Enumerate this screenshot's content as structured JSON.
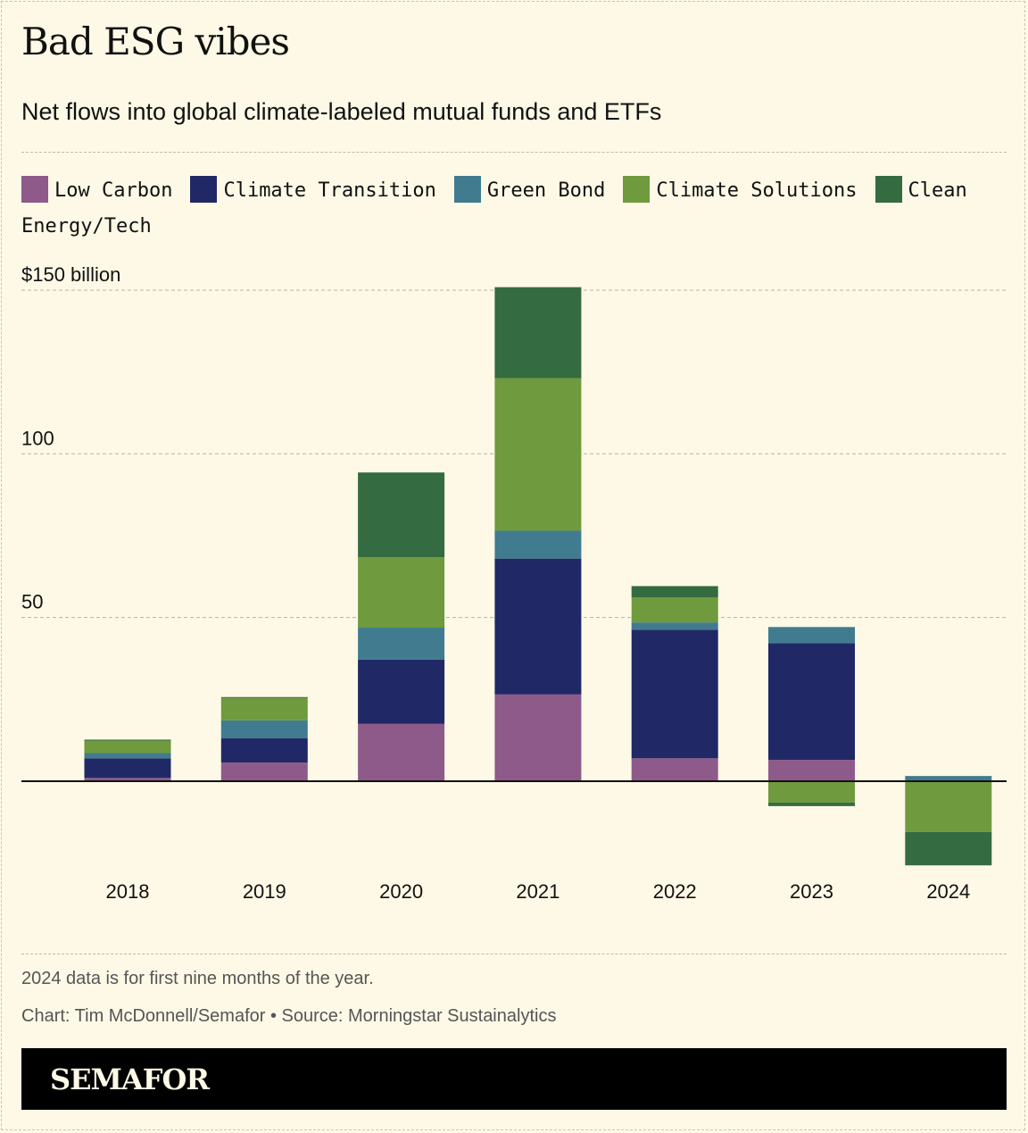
{
  "chart_data": {
    "type": "bar",
    "stacked": true,
    "title": "Bad ESG vibes",
    "subtitle": "Net flows into global climate-labeled mutual funds and ETFs",
    "ylabel": "",
    "y_unit_label": "$150 billion",
    "yticks": [
      {
        "value": 150,
        "label": "$150 billion"
      },
      {
        "value": 100,
        "label": "100"
      },
      {
        "value": 50,
        "label": "50"
      }
    ],
    "ylim": [
      -28,
      155
    ],
    "grid": true,
    "legend_placement": "top",
    "categories": [
      "2018",
      "2019",
      "2020",
      "2021",
      "2022",
      "2023",
      "2024"
    ],
    "series": [
      {
        "name": "Low Carbon",
        "color": "#8e5a8a",
        "values": [
          1,
          5.7,
          17.5,
          26.5,
          7,
          6.5,
          0
        ]
      },
      {
        "name": "Climate Transition",
        "color": "#202966",
        "values": [
          6,
          7.4,
          19.6,
          41.5,
          39.3,
          35.7,
          0
        ]
      },
      {
        "name": "Green Bond",
        "color": "#417b8f",
        "values": [
          1.6,
          5.5,
          9.8,
          8.5,
          2.2,
          4.9,
          1.6
        ]
      },
      {
        "name": "Climate Solutions",
        "color": "#6f9a3d",
        "values": [
          3.8,
          6.8,
          21.5,
          46.6,
          7.6,
          -6.5,
          -15.5
        ]
      },
      {
        "name": "Clean Energy/Tech",
        "color": "#356b40",
        "values": [
          0.3,
          0.3,
          25.9,
          27.8,
          3.5,
          -1.1,
          -10.2
        ]
      }
    ]
  },
  "notes": {
    "footnote": "2024 data is for first nine months of the year.",
    "credit": "Chart: Tim McDonnell/Semafor • Source: Morningstar Sustainalytics"
  },
  "brand": "SEMAFOR"
}
